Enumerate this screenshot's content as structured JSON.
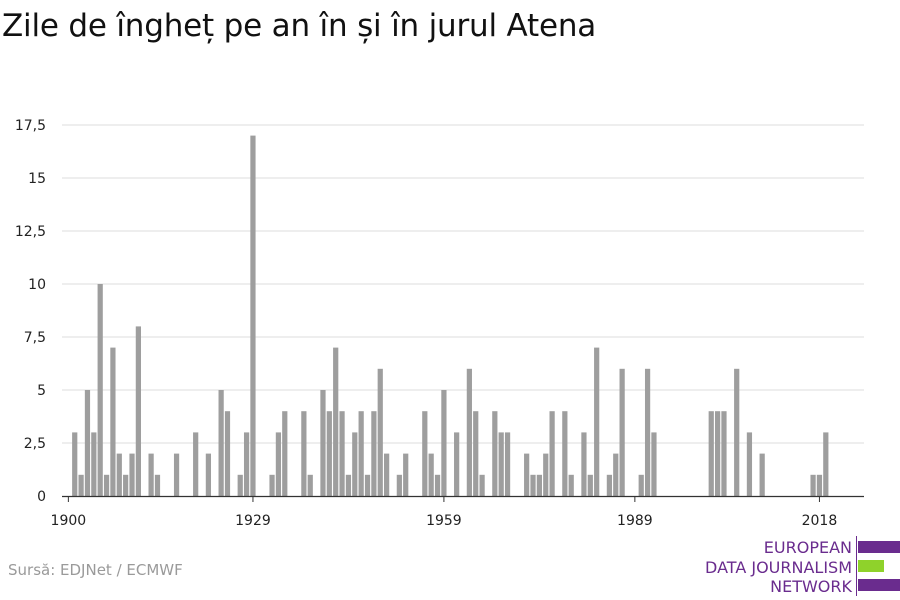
{
  "title": "Zile de îngheț pe an în și în jurul Atena",
  "source": "Sursă: EDJNet / ECMWF",
  "logo": {
    "line1": "EUROPEAN",
    "line2": "DATA JOURNALISM",
    "line3": "NETWORK",
    "colors": {
      "purple": "#6a2c8e",
      "green": "#8fd22b"
    }
  },
  "chart_data": {
    "type": "bar",
    "title": "Zile de îngheț pe an în și în jurul Atena",
    "xlabel": "",
    "ylabel": "",
    "bar_color": "#9e9e9e",
    "grid": true,
    "ylim": [
      0,
      17.5
    ],
    "yticks": [
      0,
      2.5,
      5,
      7.5,
      10,
      12.5,
      15,
      17.5
    ],
    "ytick_labels": [
      "0",
      "2,5",
      "5",
      "7,5",
      "10",
      "12,5",
      "15",
      "17,5"
    ],
    "xlim": [
      1899,
      2025
    ],
    "xticks": [
      1900,
      1929,
      1959,
      1989,
      2018
    ],
    "xtick_labels": [
      "1900",
      "1929",
      "1959",
      "1989",
      "2018"
    ],
    "x": [
      1900,
      1901,
      1902,
      1903,
      1904,
      1905,
      1906,
      1907,
      1908,
      1909,
      1910,
      1911,
      1912,
      1913,
      1914,
      1915,
      1916,
      1917,
      1918,
      1919,
      1920,
      1921,
      1922,
      1923,
      1924,
      1925,
      1926,
      1927,
      1928,
      1929,
      1930,
      1931,
      1932,
      1933,
      1934,
      1935,
      1936,
      1937,
      1938,
      1939,
      1940,
      1941,
      1942,
      1943,
      1944,
      1945,
      1946,
      1947,
      1948,
      1949,
      1950,
      1951,
      1952,
      1953,
      1954,
      1955,
      1956,
      1957,
      1958,
      1959,
      1960,
      1961,
      1962,
      1963,
      1964,
      1965,
      1966,
      1967,
      1968,
      1969,
      1970,
      1971,
      1972,
      1973,
      1974,
      1975,
      1976,
      1977,
      1978,
      1979,
      1980,
      1981,
      1982,
      1983,
      1984,
      1985,
      1986,
      1987,
      1988,
      1989,
      1990,
      1991,
      1992,
      1993,
      1994,
      1995,
      1996,
      1997,
      1998,
      1999,
      2000,
      2001,
      2002,
      2003,
      2004,
      2005,
      2006,
      2007,
      2008,
      2009,
      2010,
      2011,
      2012,
      2013,
      2014,
      2015,
      2016,
      2017,
      2018,
      2019,
      2020,
      2021,
      2022,
      2023,
      2024
    ],
    "values": [
      0,
      3,
      1,
      5,
      3,
      10,
      1,
      7,
      2,
      1,
      2,
      8,
      0,
      2,
      1,
      0,
      0,
      2,
      0,
      0,
      3,
      0,
      2,
      0,
      5,
      4,
      0,
      1,
      3,
      17,
      0,
      0,
      1,
      3,
      4,
      0,
      0,
      4,
      1,
      0,
      5,
      4,
      7,
      4,
      1,
      3,
      4,
      1,
      4,
      6,
      2,
      0,
      1,
      2,
      0,
      0,
      4,
      2,
      1,
      5,
      0,
      3,
      0,
      6,
      4,
      1,
      0,
      4,
      3,
      3,
      0,
      0,
      2,
      1,
      1,
      2,
      4,
      0,
      4,
      1,
      0,
      3,
      1,
      7,
      0,
      1,
      2,
      6,
      0,
      0,
      1,
      6,
      3,
      0,
      0,
      0,
      0,
      0,
      0,
      0,
      0,
      4,
      4,
      4,
      0,
      6,
      0,
      3,
      0,
      2,
      0,
      0,
      0,
      0,
      0,
      0,
      0,
      1,
      1,
      3,
      0,
      0,
      0,
      0,
      0
    ]
  }
}
